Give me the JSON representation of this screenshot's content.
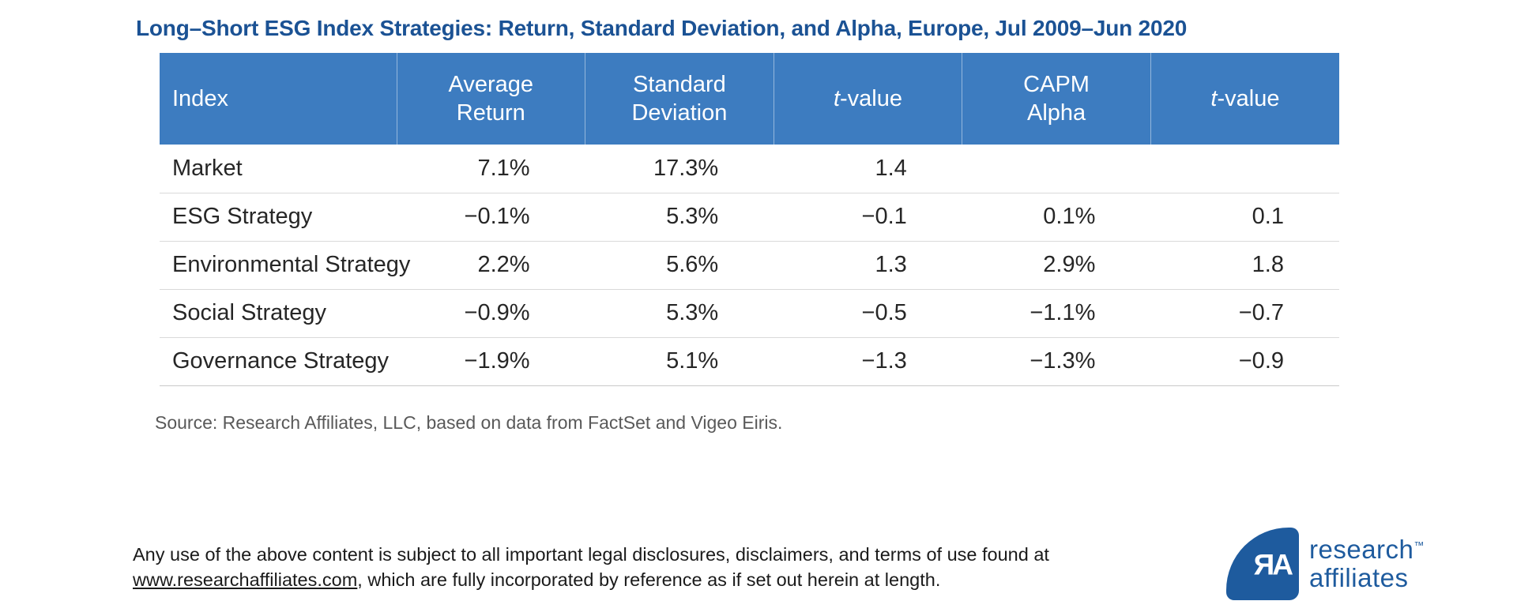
{
  "title": "Long–Short ESG Index Strategies: Return, Standard Deviation, and Alpha, Europe, Jul 2009–Jun 2020",
  "table": {
    "columns": [
      {
        "line1": "Index"
      },
      {
        "line1": "Average",
        "line2": "Return"
      },
      {
        "line1": "Standard",
        "line2": "Deviation"
      },
      {
        "italic": "t",
        "rest": "-value"
      },
      {
        "line1": "CAPM",
        "line2": "Alpha"
      },
      {
        "italic": "t",
        "rest": "-value"
      }
    ],
    "rows": [
      {
        "cells": [
          "Market",
          "7.1%",
          "17.3%",
          "1.4",
          "",
          ""
        ]
      },
      {
        "cells": [
          "ESG Strategy",
          "−0.1%",
          "5.3%",
          "−0.1",
          "0.1%",
          "0.1"
        ]
      },
      {
        "cells": [
          "Environmental Strategy",
          "2.2%",
          "5.6%",
          "1.3",
          "2.9%",
          "1.8"
        ]
      },
      {
        "cells": [
          "Social Strategy",
          "−0.9%",
          "5.3%",
          "−0.5",
          "−1.1%",
          "−0.7"
        ]
      },
      {
        "cells": [
          "Governance Strategy",
          "−1.9%",
          "5.1%",
          "−1.3",
          "−1.3%",
          "−0.9"
        ]
      }
    ]
  },
  "source": "Source: Research Affiliates, LLC, based on data from FactSet and Vigeo Eiris.",
  "footer": {
    "line1": "Any use of the above content is subject to all important legal disclosures, disclaimers, and terms of use found at",
    "link": "www.researchaffiliates.com",
    "line2_rest": ", which are fully incorporated by reference as if set out herein at length."
  },
  "logo": {
    "monogram": "ЯA",
    "word1": "research",
    "trademark": "™",
    "word2": "affiliates"
  },
  "colors": {
    "title_blue": "#1b5294",
    "header_bg": "#3d7cc0",
    "header_separator": "#9bbede",
    "row_line": "#d9d9d9",
    "body_text": "#262626",
    "source_gray": "#595959",
    "logo_blue": "#1e5b9e"
  },
  "chart_data": {
    "type": "table",
    "title": "Long–Short ESG Index Strategies: Return, Standard Deviation, and Alpha, Europe, Jul 2009–Jun 2020",
    "columns": [
      "Index",
      "Average Return",
      "Standard Deviation",
      "t-value",
      "CAPM Alpha",
      "t-value"
    ],
    "rows": [
      [
        "Market",
        "7.1%",
        "17.3%",
        "1.4",
        null,
        null
      ],
      [
        "ESG Strategy",
        "−0.1%",
        "5.3%",
        "−0.1",
        "0.1%",
        "0.1"
      ],
      [
        "Environmental Strategy",
        "2.2%",
        "5.6%",
        "1.3",
        "2.9%",
        "1.8"
      ],
      [
        "Social Strategy",
        "−0.9%",
        "5.3%",
        "−0.5",
        "−1.1%",
        "−0.7"
      ],
      [
        "Governance Strategy",
        "−1.9%",
        "5.1%",
        "−1.3",
        "−1.3%",
        "−0.9"
      ]
    ],
    "source": "Source: Research Affiliates, LLC, based on data from FactSet and Vigeo Eiris.",
    "layout": {
      "header_style": "blue-band-white-text",
      "grid": "horizontal-rules-only"
    }
  }
}
